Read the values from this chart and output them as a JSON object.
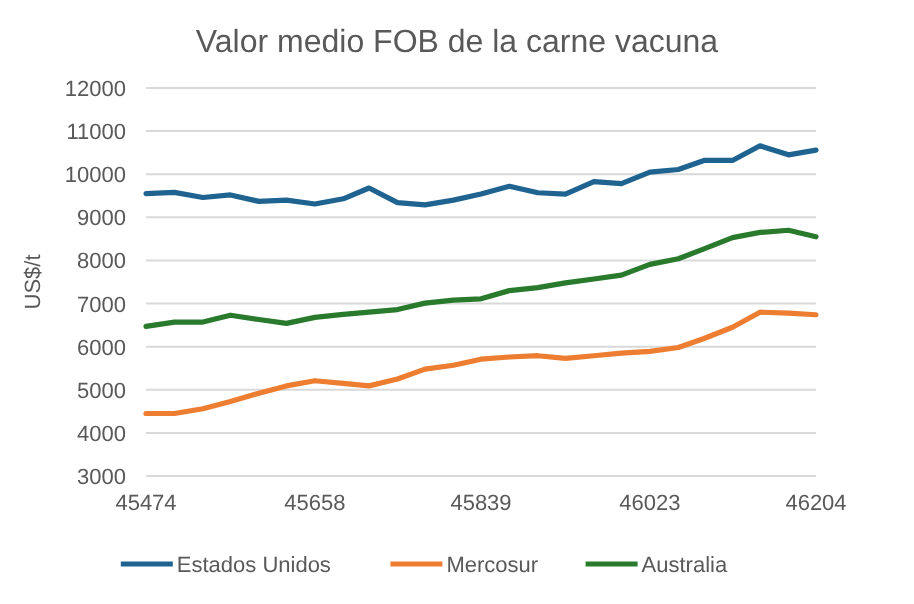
{
  "chart_data": {
    "type": "line",
    "title": "Valor medio FOB de la carne vacuna",
    "ylabel": "US$/t",
    "x": [
      45474,
      45505,
      45536,
      45566,
      45597,
      45627,
      45658,
      45689,
      45717,
      45748,
      45778,
      45809,
      45839,
      45870,
      45901,
      45931,
      45962,
      45992,
      46023,
      46054,
      46082,
      46113,
      46143,
      46174,
      46204
    ],
    "series": [
      {
        "name": "Estados Unidos",
        "color": "#1f6391",
        "values": [
          9550,
          9580,
          9460,
          9520,
          9370,
          9400,
          9310,
          9430,
          9680,
          9340,
          9290,
          9400,
          9540,
          9720,
          9570,
          9540,
          9830,
          9780,
          10050,
          10110,
          10320,
          10320,
          10660,
          10450,
          10560
        ]
      },
      {
        "name": "Mercosur",
        "color": "#ed7d31",
        "values": [
          4450,
          4450,
          4560,
          4730,
          4920,
          5090,
          5210,
          5150,
          5090,
          5250,
          5480,
          5570,
          5710,
          5760,
          5790,
          5730,
          5790,
          5850,
          5890,
          5980,
          6190,
          6450,
          6800,
          6780,
          6740
        ]
      },
      {
        "name": "Australia",
        "color": "#2a7a2e",
        "values": [
          6470,
          6570,
          6570,
          6730,
          6630,
          6540,
          6680,
          6750,
          6800,
          6860,
          7010,
          7080,
          7110,
          7300,
          7370,
          7480,
          7570,
          7660,
          7910,
          8040,
          8270,
          8530,
          8650,
          8700,
          8550
        ]
      }
    ],
    "xlim": [
      45474,
      46204
    ],
    "xticks": [
      45474,
      45658,
      45839,
      46023,
      46204
    ],
    "ylim": [
      3000,
      12000
    ],
    "yticks": [
      3000,
      4000,
      5000,
      6000,
      7000,
      8000,
      9000,
      10000,
      11000,
      12000
    ],
    "grid": "y",
    "legend": "bottom",
    "marker": "none",
    "line_style": "solid"
  }
}
